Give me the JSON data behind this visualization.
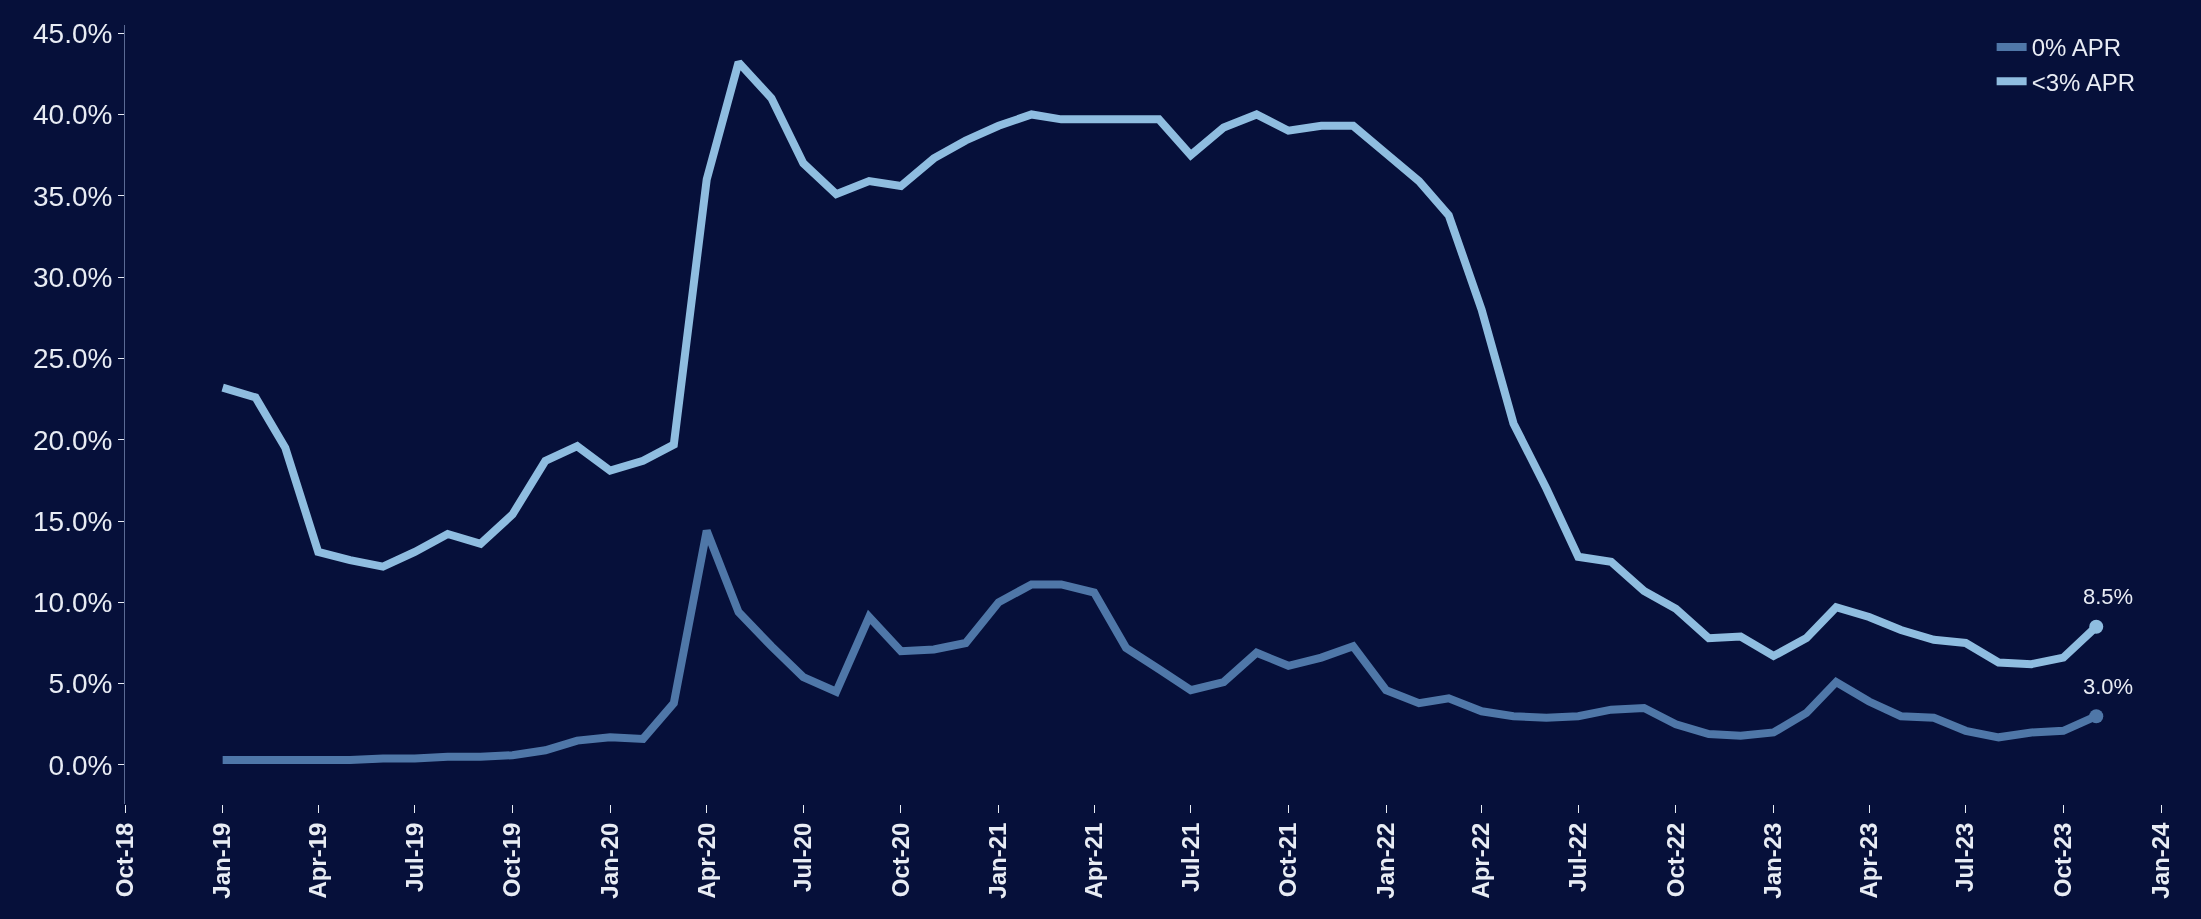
{
  "chart_data": {
    "type": "line",
    "x": [
      "2019-01",
      "2019-02",
      "2019-03",
      "2019-04",
      "2019-05",
      "2019-06",
      "2019-07",
      "2019-08",
      "2019-09",
      "2019-10",
      "2019-11",
      "2019-12",
      "2020-01",
      "2020-02",
      "2020-03",
      "2020-04",
      "2020-05",
      "2020-06",
      "2020-07",
      "2020-08",
      "2020-09",
      "2020-10",
      "2020-11",
      "2020-12",
      "2021-01",
      "2021-02",
      "2021-03",
      "2021-04",
      "2021-05",
      "2021-06",
      "2021-07",
      "2021-08",
      "2021-09",
      "2021-10",
      "2021-11",
      "2021-12",
      "2022-01",
      "2022-02",
      "2022-03",
      "2022-04",
      "2022-05",
      "2022-06",
      "2022-07",
      "2022-08",
      "2022-09",
      "2022-10",
      "2022-11",
      "2022-12",
      "2023-01",
      "2023-02",
      "2023-03",
      "2023-04",
      "2023-05",
      "2023-06",
      "2023-07",
      "2023-08",
      "2023-09",
      "2023-10",
      "2023-11"
    ],
    "series": [
      {
        "name": "0% APR",
        "color": "#4f77a8",
        "values": [
          0.3,
          0.3,
          0.3,
          0.3,
          0.3,
          0.4,
          0.4,
          0.5,
          0.5,
          0.6,
          0.9,
          1.5,
          1.7,
          1.6,
          3.8,
          14.4,
          9.4,
          7.3,
          5.4,
          4.5,
          9.1,
          7.0,
          7.1,
          7.5,
          10.0,
          11.1,
          11.1,
          10.6,
          7.2,
          5.9,
          4.6,
          5.1,
          6.9,
          6.1,
          6.6,
          7.3,
          4.6,
          3.8,
          4.1,
          3.3,
          3.0,
          2.9,
          3.0,
          3.4,
          3.5,
          2.5,
          1.9,
          1.8,
          2.0,
          3.2,
          5.1,
          3.9,
          3.0,
          2.9,
          2.1,
          1.7,
          2.0,
          2.1,
          3.0
        ]
      },
      {
        "name": "<3% APR",
        "color": "#8fbde0",
        "values": [
          23.2,
          22.6,
          19.5,
          13.1,
          12.6,
          12.2,
          13.1,
          14.2,
          13.6,
          15.4,
          18.7,
          19.6,
          18.1,
          18.7,
          19.7,
          36.0,
          43.2,
          41.0,
          37.0,
          35.1,
          35.9,
          35.6,
          37.3,
          38.4,
          39.3,
          40.0,
          39.7,
          39.7,
          39.7,
          39.7,
          37.5,
          39.2,
          40.0,
          39.0,
          39.3,
          39.3,
          37.6,
          35.9,
          33.8,
          28.0,
          21.0,
          17.0,
          12.8,
          12.5,
          10.7,
          9.6,
          7.8,
          7.9,
          6.7,
          7.8,
          9.7,
          9.1,
          8.3,
          7.7,
          7.5,
          6.3,
          6.2,
          6.6,
          8.5
        ]
      }
    ],
    "annotations": [
      {
        "text": "3.0%",
        "x": "2023-11",
        "y": 3.0
      },
      {
        "text": "8.5%",
        "x": "2023-11",
        "y": 8.5
      }
    ],
    "xlim": [
      "2018-10",
      "2024-01"
    ],
    "xticks": [
      {
        "value": "2018-10",
        "label": "Oct-18"
      },
      {
        "value": "2019-01",
        "label": "Jan-19"
      },
      {
        "value": "2019-04",
        "label": "Apr-19"
      },
      {
        "value": "2019-07",
        "label": "Jul-19"
      },
      {
        "value": "2019-10",
        "label": "Oct-19"
      },
      {
        "value": "2020-01",
        "label": "Jan-20"
      },
      {
        "value": "2020-04",
        "label": "Apr-20"
      },
      {
        "value": "2020-07",
        "label": "Jul-20"
      },
      {
        "value": "2020-10",
        "label": "Oct-20"
      },
      {
        "value": "2021-01",
        "label": "Jan-21"
      },
      {
        "value": "2021-04",
        "label": "Apr-21"
      },
      {
        "value": "2021-07",
        "label": "Jul-21"
      },
      {
        "value": "2021-10",
        "label": "Oct-21"
      },
      {
        "value": "2022-01",
        "label": "Jan-22"
      },
      {
        "value": "2022-04",
        "label": "Apr-22"
      },
      {
        "value": "2022-07",
        "label": "Jul-22"
      },
      {
        "value": "2022-10",
        "label": "Oct-22"
      },
      {
        "value": "2023-01",
        "label": "Jan-23"
      },
      {
        "value": "2023-04",
        "label": "Apr-23"
      },
      {
        "value": "2023-07",
        "label": "Jul-23"
      },
      {
        "value": "2023-10",
        "label": "Oct-23"
      },
      {
        "value": "2024-01",
        "label": "Jan-24"
      }
    ],
    "ylim": [
      -2.4,
      45.5
    ],
    "yticks": [
      {
        "value": 0,
        "label": "0.0%"
      },
      {
        "value": 5,
        "label": "5.0%"
      },
      {
        "value": 10,
        "label": "10.0%"
      },
      {
        "value": 15,
        "label": "15.0%"
      },
      {
        "value": 20,
        "label": "20.0%"
      },
      {
        "value": 25,
        "label": "25.0%"
      },
      {
        "value": 30,
        "label": "30.0%"
      },
      {
        "value": 35,
        "label": "35.0%"
      },
      {
        "value": 40,
        "label": "40.0%"
      },
      {
        "value": 45,
        "label": "45.0%"
      }
    ],
    "grid": false,
    "legend": "top right",
    "marker": "none",
    "line_style": "solid"
  }
}
